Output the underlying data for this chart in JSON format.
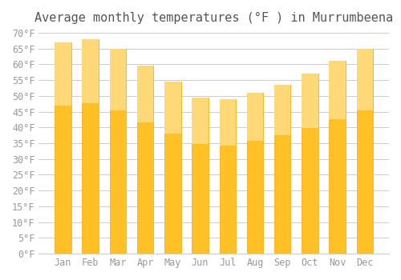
{
  "title": "Average monthly temperatures (°F ) in Murrumbeena",
  "months": [
    "Jan",
    "Feb",
    "Mar",
    "Apr",
    "May",
    "Jun",
    "Jul",
    "Aug",
    "Sep",
    "Oct",
    "Nov",
    "Dec"
  ],
  "values": [
    67,
    68,
    65,
    59.5,
    54.5,
    49.5,
    49,
    51,
    53.5,
    57,
    61,
    65
  ],
  "bar_color_top": "#FFA500",
  "bar_color_bottom": "#FFD060",
  "ylim": [
    0,
    70
  ],
  "ytick_step": 5,
  "background_color": "#FFFFFF",
  "grid_color": "#CCCCCC",
  "title_fontsize": 11,
  "tick_fontsize": 8.5,
  "bar_width": 0.6
}
